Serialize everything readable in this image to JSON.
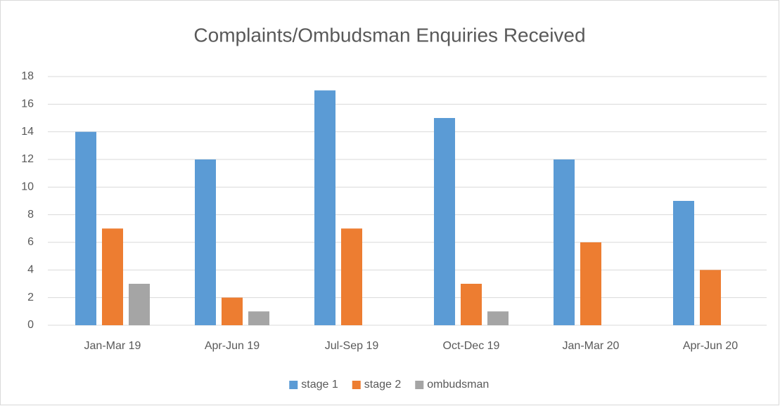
{
  "chart_data": {
    "type": "bar",
    "title": "Complaints/Ombudsman Enquiries Received",
    "categories": [
      "Jan-Mar 19",
      "Apr-Jun 19",
      "Jul-Sep 19",
      "Oct-Dec 19",
      "Jan-Mar 20",
      "Apr-Jun 20"
    ],
    "series": [
      {
        "name": "stage 1",
        "color": "#5b9bd5",
        "values": [
          14,
          12,
          17,
          15,
          12,
          9
        ]
      },
      {
        "name": "stage 2",
        "color": "#ed7d31",
        "values": [
          7,
          2,
          7,
          3,
          6,
          4
        ]
      },
      {
        "name": "ombudsman",
        "color": "#a5a5a5",
        "values": [
          3,
          1,
          0,
          1,
          0,
          0
        ]
      }
    ],
    "ylim": [
      0,
      18
    ],
    "yticks": [
      0,
      2,
      4,
      6,
      8,
      10,
      12,
      14,
      16,
      18
    ],
    "grid": true,
    "legend": "bottom"
  }
}
